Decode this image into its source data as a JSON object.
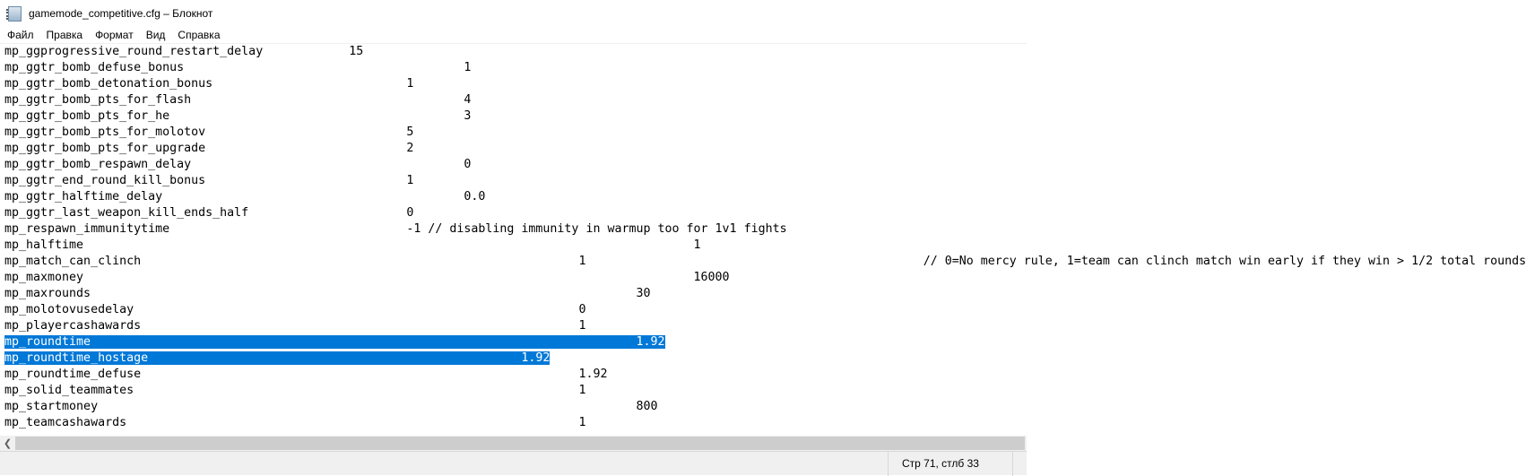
{
  "window": {
    "title": "gamemode_competitive.cfg – Блокнот",
    "icon": "notepad-icon"
  },
  "menu": [
    "Файл",
    "Правка",
    "Формат",
    "Вид",
    "Справка"
  ],
  "lines": [
    {
      "text": "mp_ggprogressive_round_restart_delay\t\t15",
      "selected": false
    },
    {
      "text": "mp_ggtr_bomb_defuse_bonus\t\t\t\t\t1",
      "selected": false
    },
    {
      "text": "mp_ggtr_bomb_detonation_bonus\t\t\t\t1",
      "selected": false
    },
    {
      "text": "mp_ggtr_bomb_pts_for_flash\t\t\t\t\t4",
      "selected": false
    },
    {
      "text": "mp_ggtr_bomb_pts_for_he\t\t\t\t\t\t3",
      "selected": false
    },
    {
      "text": "mp_ggtr_bomb_pts_for_molotov\t\t\t\t5",
      "selected": false
    },
    {
      "text": "mp_ggtr_bomb_pts_for_upgrade\t\t\t\t2",
      "selected": false
    },
    {
      "text": "mp_ggtr_bomb_respawn_delay\t\t\t\t\t0",
      "selected": false
    },
    {
      "text": "mp_ggtr_end_round_kill_bonus\t\t\t\t1",
      "selected": false
    },
    {
      "text": "mp_ggtr_halftime_delay\t\t\t\t\t\t0.0",
      "selected": false
    },
    {
      "text": "mp_ggtr_last_weapon_kill_ends_half\t\t\t0",
      "selected": false
    },
    {
      "text": "mp_respawn_immunitytime\t\t\t\t\t-1 // disabling immunity in warmup too for 1v1 fights",
      "selected": false
    },
    {
      "text": "mp_halftime\t\t\t\t\t\t\t\t\t\t\t1",
      "selected": false
    },
    {
      "text": "mp_match_can_clinch\t\t\t\t\t\t\t\t1\t\t\t\t\t\t// 0=No mercy rule, 1=team can clinch match win early if they win > 1/2 total rounds",
      "selected": false
    },
    {
      "text": "mp_maxmoney\t\t\t\t\t\t\t\t\t\t\t16000",
      "selected": false
    },
    {
      "text": "mp_maxrounds\t\t\t\t\t\t\t\t\t\t30",
      "selected": false
    },
    {
      "text": "mp_molotovusedelay\t\t\t\t\t\t\t\t0",
      "selected": false
    },
    {
      "text": "mp_playercashawards\t\t\t\t\t\t\t\t1",
      "selected": false
    },
    {
      "text": "mp_roundtime\t\t\t\t\t\t\t\t\t\t1.92",
      "selected": true
    },
    {
      "text": "mp_roundtime_hostage\t\t\t\t\t\t\t1.92",
      "selected": true
    },
    {
      "text": "mp_roundtime_defuse\t\t\t\t\t\t\t\t1.92",
      "selected": false
    },
    {
      "text": "mp_solid_teammates\t\t\t\t\t\t\t\t1",
      "selected": false
    },
    {
      "text": "mp_startmoney\t\t\t\t\t\t\t\t\t\t800",
      "selected": false
    },
    {
      "text": "mp_teamcashawards\t\t\t\t\t\t\t\t1",
      "selected": false
    }
  ],
  "status": {
    "position": "Стр 71, стлб 33"
  },
  "colors": {
    "selection": "#0078d7"
  }
}
